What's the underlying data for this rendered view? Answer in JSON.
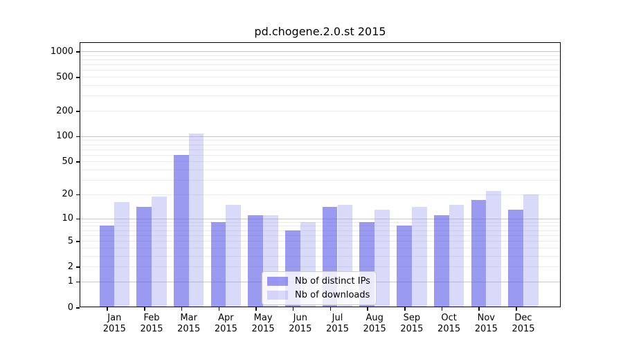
{
  "title": "pd.chogene.2.0.st 2015",
  "colors": {
    "bar_distinct_ips": "rgba(92,92,232,0.62)",
    "bar_downloads": "rgba(150,150,242,0.36)",
    "grid_major": "#c8c8c8",
    "grid_minor": "#ebebeb",
    "frame": "#000000",
    "legend_border": "#cccccc"
  },
  "chart_data": {
    "type": "bar",
    "title": "pd.chogene.2.0.st 2015",
    "categories": [
      "Jan",
      "Feb",
      "Mar",
      "Apr",
      "May",
      "Jun",
      "Jul",
      "Aug",
      "Sep",
      "Oct",
      "Nov",
      "Dec"
    ],
    "year": "2015",
    "series": [
      {
        "name": "Nb of distinct IPs",
        "values": [
          8,
          14,
          60,
          9,
          11,
          7,
          14,
          9,
          8,
          11,
          17,
          13
        ]
      },
      {
        "name": "Nb of downloads",
        "values": [
          16,
          19,
          107,
          15,
          11,
          9,
          15,
          13,
          14,
          15,
          22,
          20
        ]
      }
    ],
    "yscale": "log10(1+v)",
    "yticks": [
      0,
      1,
      2,
      5,
      10,
      20,
      50,
      100,
      200,
      500,
      1000
    ],
    "ylim": [
      0,
      1000
    ],
    "grid": true,
    "legend_position": "lower-center",
    "xlabel": "",
    "ylabel": ""
  },
  "legend": {
    "items": [
      {
        "label": "Nb of distinct IPs"
      },
      {
        "label": "Nb of downloads"
      }
    ]
  }
}
